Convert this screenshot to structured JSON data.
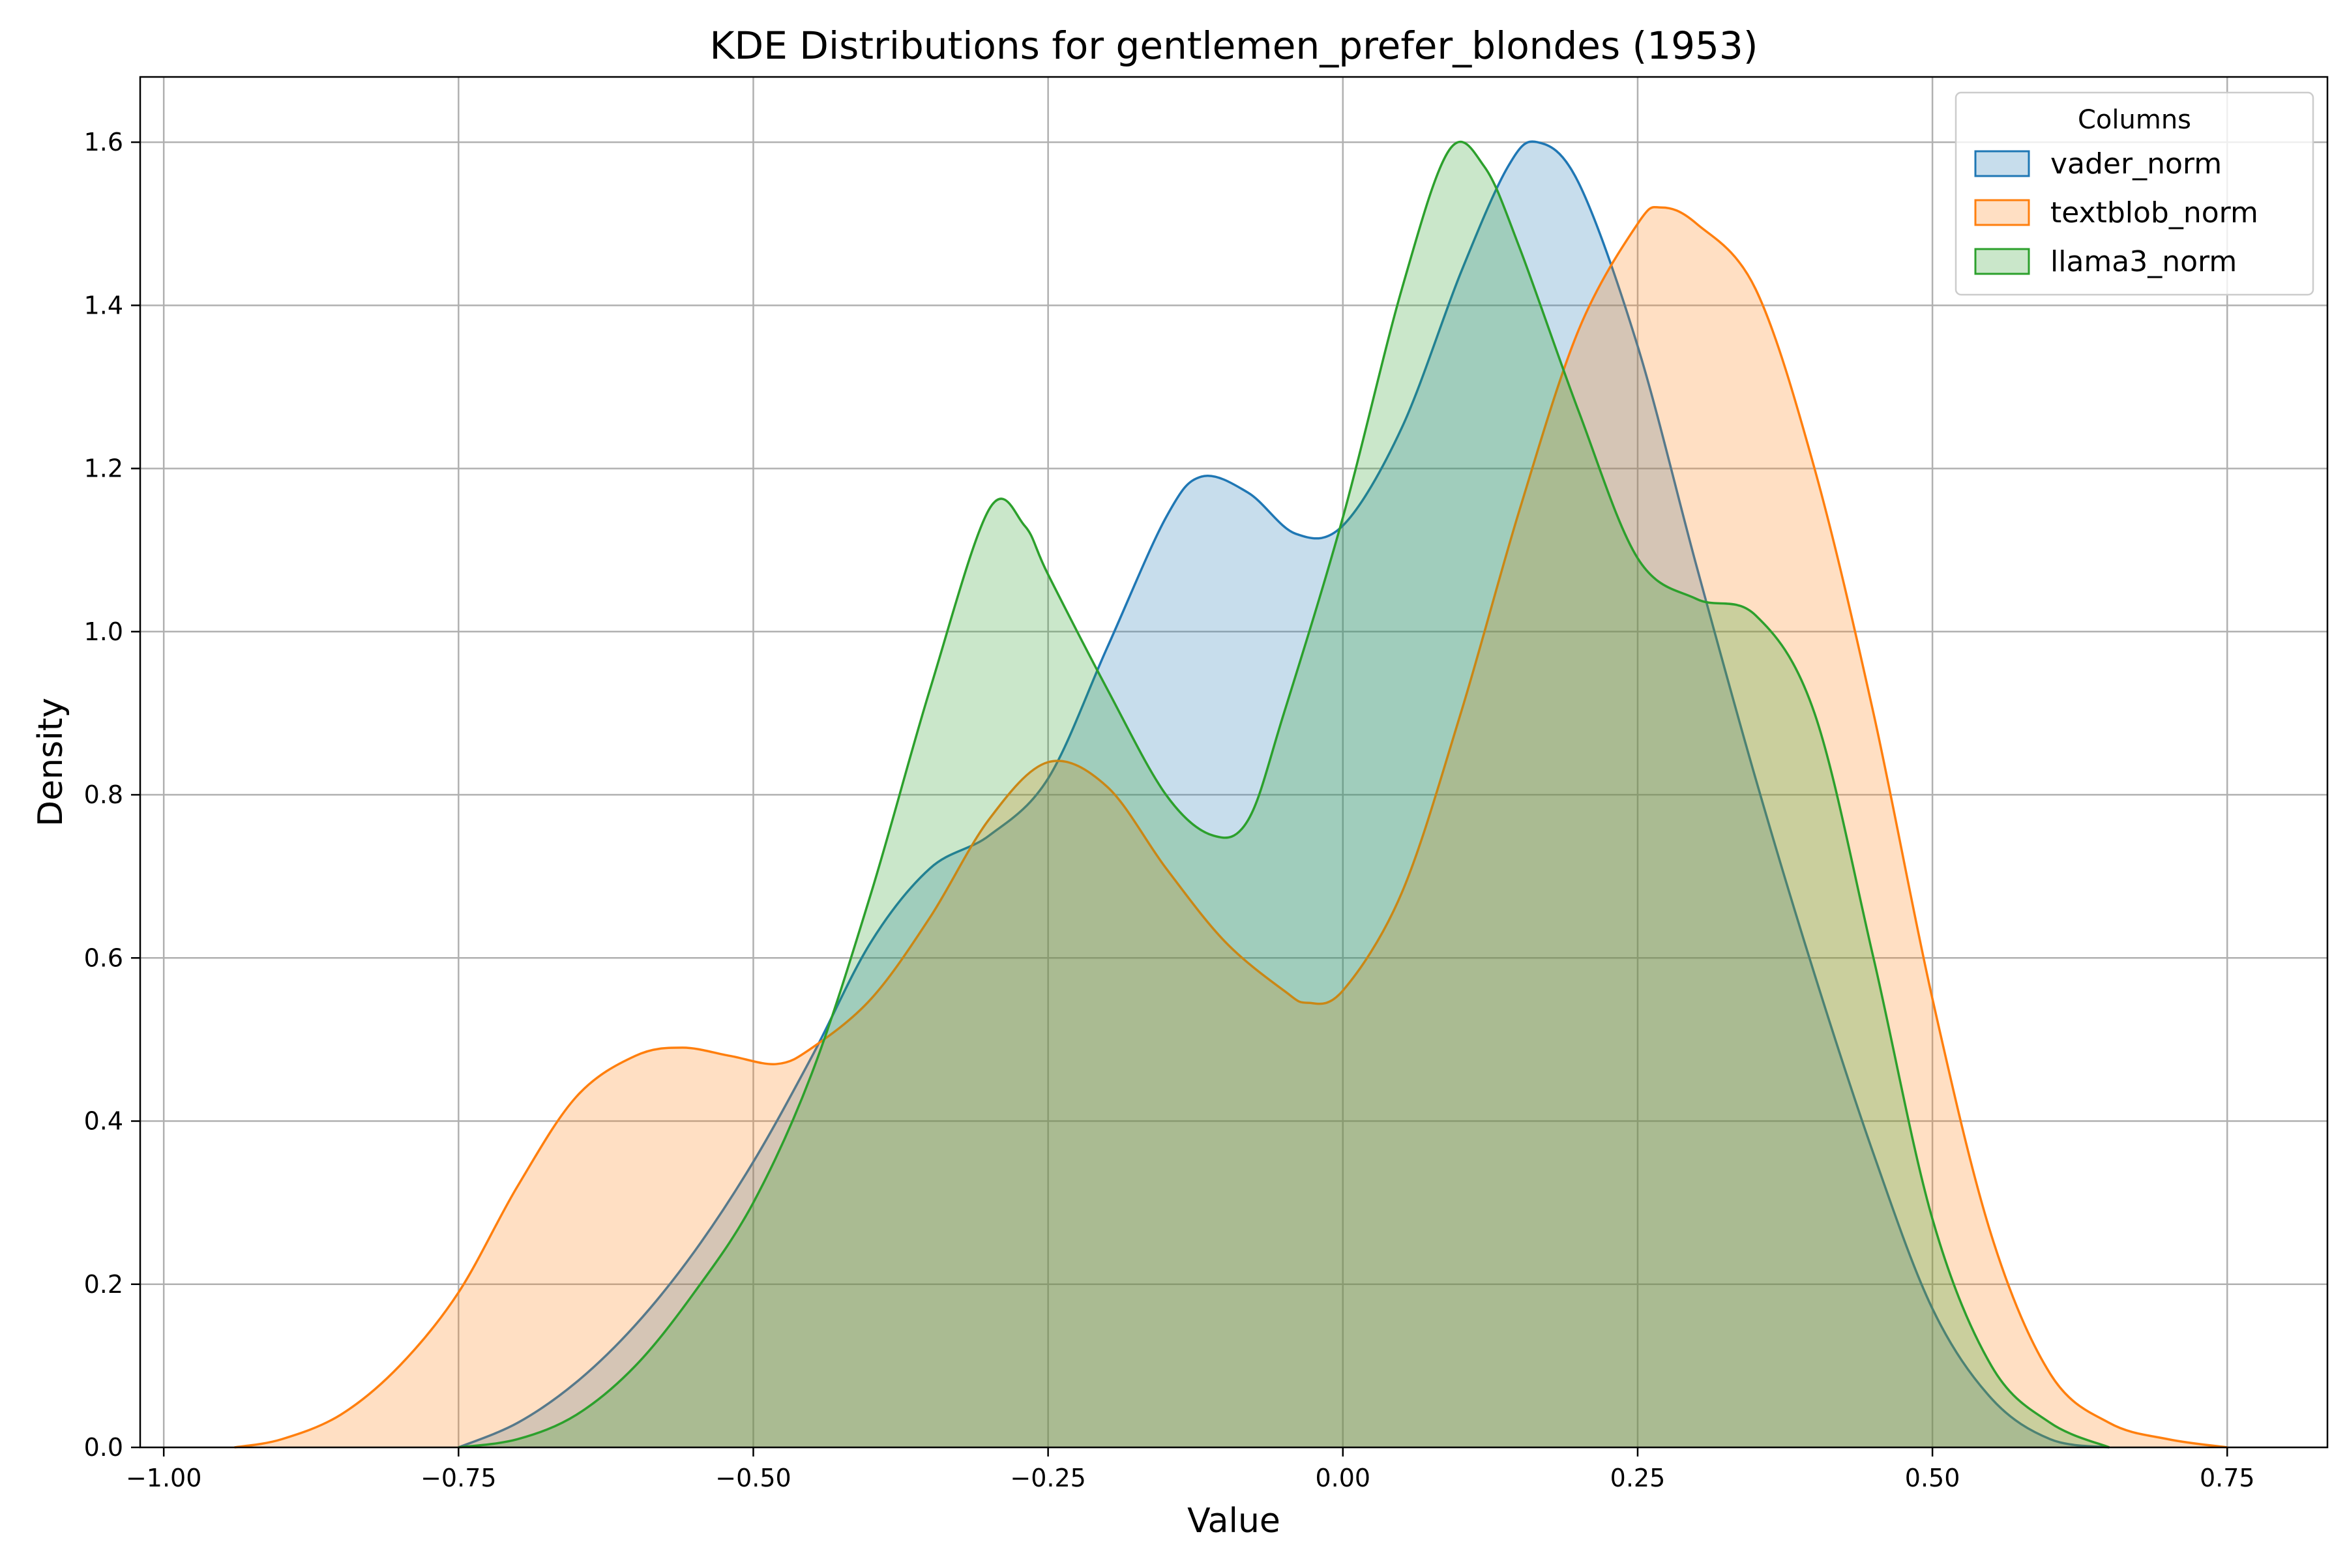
{
  "chart_data": {
    "type": "area",
    "title": "KDE Distributions for gentlemen_prefer_blondes (1953)",
    "xlabel": "Value",
    "ylabel": "Density",
    "xlim": [
      -1.02,
      0.835
    ],
    "ylim": [
      0,
      1.68
    ],
    "xticks": [
      -1.0,
      -0.75,
      -0.5,
      -0.25,
      0.0,
      0.25,
      0.5,
      0.75
    ],
    "xtick_labels": [
      "−1.00",
      "−0.75",
      "−0.50",
      "−0.25",
      "0.00",
      "0.25",
      "0.50",
      "0.75"
    ],
    "yticks": [
      0.0,
      0.2,
      0.4,
      0.6,
      0.8,
      1.0,
      1.2,
      1.4,
      1.6
    ],
    "ytick_labels": [
      "0.0",
      "0.2",
      "0.4",
      "0.6",
      "0.8",
      "1.0",
      "1.2",
      "1.4",
      "1.6"
    ],
    "grid": true,
    "legend": {
      "title": "Columns",
      "position": "top-right"
    },
    "series": [
      {
        "name": "vader_norm",
        "color": "#1f77b4",
        "points": [
          [
            -0.75,
            0.0
          ],
          [
            -0.7,
            0.03
          ],
          [
            -0.65,
            0.08
          ],
          [
            -0.6,
            0.15
          ],
          [
            -0.55,
            0.24
          ],
          [
            -0.5,
            0.35
          ],
          [
            -0.45,
            0.48
          ],
          [
            -0.4,
            0.62
          ],
          [
            -0.35,
            0.71
          ],
          [
            -0.3,
            0.75
          ],
          [
            -0.25,
            0.82
          ],
          [
            -0.2,
            0.98
          ],
          [
            -0.15,
            1.14
          ],
          [
            -0.12,
            1.19
          ],
          [
            -0.08,
            1.17
          ],
          [
            -0.04,
            1.12
          ],
          [
            0.0,
            1.13
          ],
          [
            0.05,
            1.25
          ],
          [
            0.1,
            1.44
          ],
          [
            0.14,
            1.57
          ],
          [
            0.165,
            1.6
          ],
          [
            0.2,
            1.55
          ],
          [
            0.25,
            1.35
          ],
          [
            0.3,
            1.08
          ],
          [
            0.35,
            0.82
          ],
          [
            0.4,
            0.58
          ],
          [
            0.45,
            0.36
          ],
          [
            0.5,
            0.17
          ],
          [
            0.55,
            0.06
          ],
          [
            0.6,
            0.01
          ],
          [
            0.65,
            0.0
          ]
        ]
      },
      {
        "name": "textblob_norm",
        "color": "#ff7f0e",
        "points": [
          [
            -0.94,
            0.0
          ],
          [
            -0.9,
            0.01
          ],
          [
            -0.85,
            0.04
          ],
          [
            -0.8,
            0.1
          ],
          [
            -0.75,
            0.19
          ],
          [
            -0.7,
            0.32
          ],
          [
            -0.65,
            0.43
          ],
          [
            -0.6,
            0.48
          ],
          [
            -0.56,
            0.49
          ],
          [
            -0.52,
            0.48
          ],
          [
            -0.48,
            0.47
          ],
          [
            -0.45,
            0.49
          ],
          [
            -0.4,
            0.55
          ],
          [
            -0.35,
            0.65
          ],
          [
            -0.3,
            0.77
          ],
          [
            -0.25,
            0.84
          ],
          [
            -0.2,
            0.81
          ],
          [
            -0.15,
            0.71
          ],
          [
            -0.1,
            0.62
          ],
          [
            -0.05,
            0.56
          ],
          [
            -0.03,
            0.545
          ],
          [
            0.0,
            0.56
          ],
          [
            0.05,
            0.68
          ],
          [
            0.1,
            0.9
          ],
          [
            0.15,
            1.15
          ],
          [
            0.2,
            1.37
          ],
          [
            0.25,
            1.5
          ],
          [
            0.27,
            1.52
          ],
          [
            0.3,
            1.5
          ],
          [
            0.35,
            1.42
          ],
          [
            0.4,
            1.2
          ],
          [
            0.45,
            0.9
          ],
          [
            0.5,
            0.55
          ],
          [
            0.55,
            0.26
          ],
          [
            0.6,
            0.09
          ],
          [
            0.65,
            0.03
          ],
          [
            0.7,
            0.01
          ],
          [
            0.75,
            0.0
          ]
        ]
      },
      {
        "name": "llama3_norm",
        "color": "#2ca02c",
        "points": [
          [
            -0.75,
            0.0
          ],
          [
            -0.7,
            0.01
          ],
          [
            -0.65,
            0.04
          ],
          [
            -0.6,
            0.1
          ],
          [
            -0.55,
            0.19
          ],
          [
            -0.5,
            0.3
          ],
          [
            -0.45,
            0.46
          ],
          [
            -0.4,
            0.68
          ],
          [
            -0.35,
            0.93
          ],
          [
            -0.3,
            1.15
          ],
          [
            -0.27,
            1.13
          ],
          [
            -0.25,
            1.07
          ],
          [
            -0.2,
            0.93
          ],
          [
            -0.15,
            0.8
          ],
          [
            -0.11,
            0.75
          ],
          [
            -0.08,
            0.77
          ],
          [
            -0.05,
            0.9
          ],
          [
            0.0,
            1.14
          ],
          [
            0.05,
            1.42
          ],
          [
            0.09,
            1.59
          ],
          [
            0.12,
            1.57
          ],
          [
            0.15,
            1.47
          ],
          [
            0.2,
            1.27
          ],
          [
            0.25,
            1.09
          ],
          [
            0.3,
            1.04
          ],
          [
            0.35,
            1.02
          ],
          [
            0.4,
            0.9
          ],
          [
            0.45,
            0.6
          ],
          [
            0.5,
            0.28
          ],
          [
            0.55,
            0.1
          ],
          [
            0.6,
            0.03
          ],
          [
            0.65,
            0.0
          ]
        ]
      }
    ]
  }
}
